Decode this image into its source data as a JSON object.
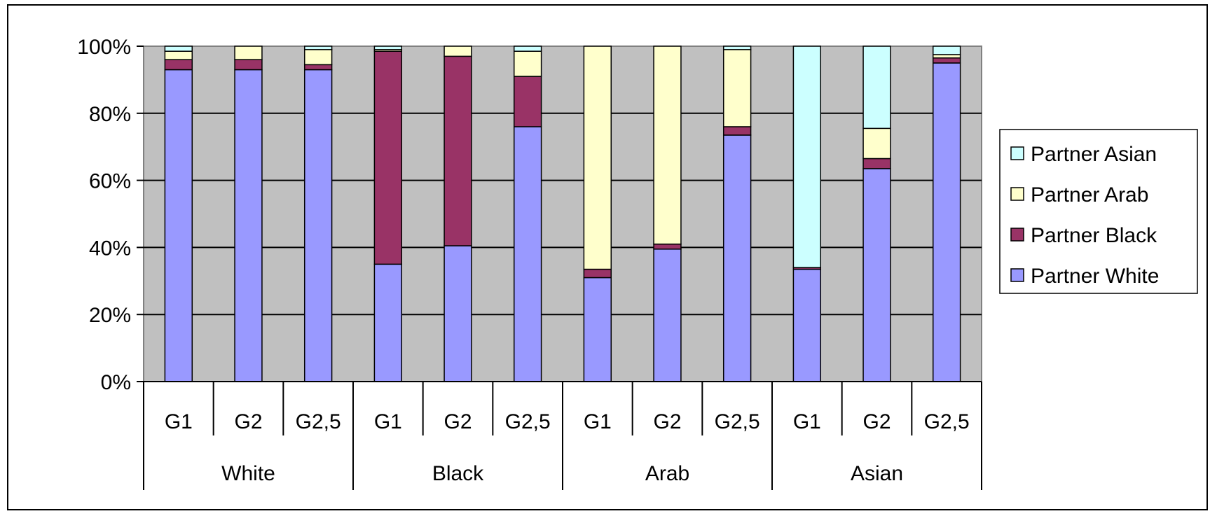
{
  "chart_data": {
    "type": "bar",
    "stacked": true,
    "percent": true,
    "groups": [
      "White",
      "Black",
      "Arab",
      "Asian"
    ],
    "subcategories": [
      "G1",
      "G2",
      "G2,5"
    ],
    "categories": [
      "White G1",
      "White G2",
      "White G2,5",
      "Black G1",
      "Black G2",
      "Black G2,5",
      "Arab G1",
      "Arab G2",
      "Arab G2,5",
      "Asian G1",
      "Asian G2",
      "Asian G2,5"
    ],
    "y_ticks": [
      "0%",
      "20%",
      "40%",
      "60%",
      "80%",
      "100%"
    ],
    "ylim": [
      0,
      100
    ],
    "grid": true,
    "legend_position": "right",
    "series": [
      {
        "name": "Partner White",
        "color": "#9999ff",
        "values": [
          93,
          93,
          93,
          35,
          40.5,
          76,
          31,
          39.5,
          73.5,
          33.5,
          63.5,
          95
        ]
      },
      {
        "name": "Partner Black",
        "color": "#993366",
        "values": [
          3,
          3,
          1.5,
          63.5,
          56.5,
          15,
          2.5,
          1.5,
          2.5,
          0.5,
          3,
          1.5
        ]
      },
      {
        "name": "Partner Arab",
        "color": "#ffffcc",
        "values": [
          2.5,
          4,
          4.5,
          0.5,
          3,
          7.5,
          66.5,
          59,
          23,
          0,
          9,
          1
        ]
      },
      {
        "name": "Partner Asian",
        "color": "#ccffff",
        "values": [
          1.5,
          0,
          1,
          1,
          0,
          1.5,
          0,
          0,
          1,
          66,
          24.5,
          2.5
        ]
      }
    ]
  }
}
